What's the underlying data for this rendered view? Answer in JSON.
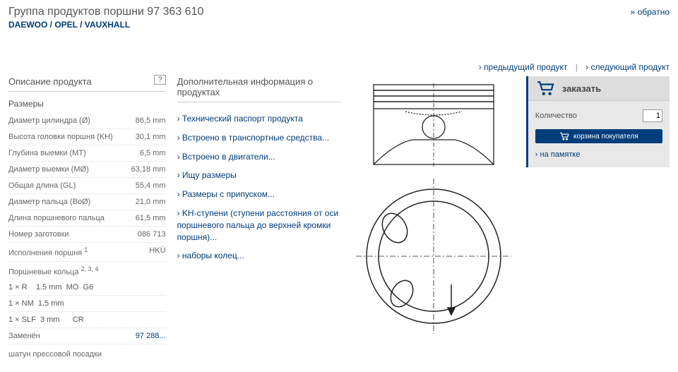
{
  "header": {
    "title": "Группа продуктов поршни 97 363 610",
    "subtitle": "DAEWOO / OPEL / VAUXHALL",
    "back": "обратно"
  },
  "nav": {
    "prev": "предыдущий продукт",
    "next": "следующий продукт"
  },
  "description": {
    "title": "Описание продукта",
    "sizes_title": "Размеры",
    "help": "?",
    "specs": [
      {
        "label": "Диаметр цилиндра (Ø)",
        "value": "86,5 mm"
      },
      {
        "label": "Высота головки поршня (KH)",
        "value": "30,1 mm"
      },
      {
        "label": "Глубина выемки (MT)",
        "value": "6,5 mm"
      },
      {
        "label": "Диаметр выемки (MØ)",
        "value": "63,18 mm"
      },
      {
        "label": "Общая длина (GL)",
        "value": "55,4 mm"
      },
      {
        "label": "Диаметр пальца (BoØ)",
        "value": "21,0 mm"
      },
      {
        "label": "Длина поршневого пальца",
        "value": "61,5 mm"
      }
    ],
    "blank_label": "Номер заготовки",
    "blank_value": "086 713",
    "exec_label_html": "Исполнения поршня <sup>1</sup>",
    "exec_value": "HKÜ",
    "rings_label_html": "Поршневые кольца <sup>2, 3, 4</sup>",
    "ring_lines": [
      "1 × R    1.5 mm  MO  G6",
      "1 × NM  1.5 mm",
      "1 × SLF  3 mm      CR"
    ],
    "replaced_label": "Заменён",
    "replaced_value": "97 288...",
    "conrod": "шатун прессовой посадки"
  },
  "info": {
    "title": "Дополнительная информация о продуктах",
    "links": [
      "Технический паспорт продукта",
      "Встроено в транспортные средства...",
      "Встроено в двигатели...",
      "Ищу размеры",
      "Размеры с припуском...",
      "KH-ступени (ступени расстояния от оси поршневого пальца до верхней кромки поршня)...",
      "наборы колец..."
    ]
  },
  "order": {
    "title": "заказать",
    "qty_label": "Количество",
    "qty_value": "1",
    "basket_label": "корзина покупателя",
    "memo": "на памятке"
  },
  "colors": {
    "primary": "#003d7a",
    "panel_bg": "#e8e8e8",
    "text": "#555555"
  }
}
